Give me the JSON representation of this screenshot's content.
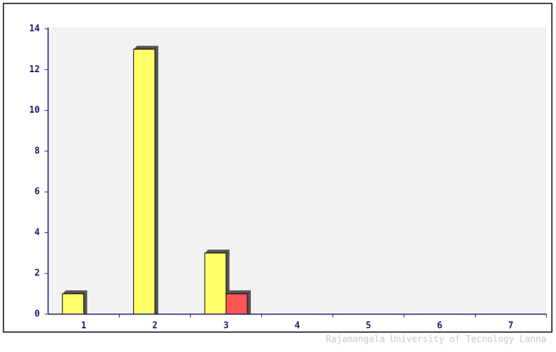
{
  "chart_data": {
    "type": "bar",
    "categories": [
      "1",
      "2",
      "3",
      "4",
      "5",
      "6",
      "7"
    ],
    "series": [
      {
        "color": "#ffff66",
        "values": [
          1,
          13,
          3,
          0,
          0,
          0,
          0
        ]
      },
      {
        "color": "#ff5555",
        "values": [
          0,
          0,
          1,
          0,
          0,
          0,
          0
        ]
      }
    ],
    "ylim": [
      0,
      14
    ],
    "yticks": [
      0,
      2,
      4,
      6,
      8,
      10,
      12,
      14
    ],
    "annotation": "Rajamangala University of Tecnology Lanna"
  }
}
